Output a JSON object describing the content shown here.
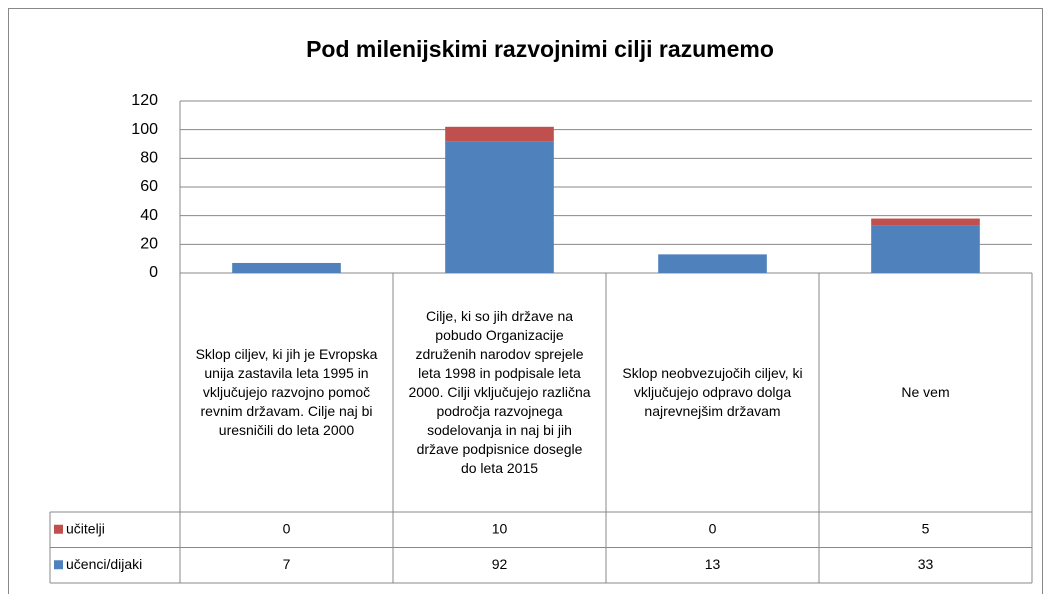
{
  "chart_data": {
    "type": "stacked_bar",
    "title": "Pod milenijskimi razvojnimi cilji razumemo",
    "categories": [
      "Sklop ciljev, ki jih je Evropska unija zastavila leta 1995 in vključujejo razvojno pomoč revnim državam. Cilje naj bi uresničili do leta 2000",
      "Cilje, ki so jih države na pobudo Organizacije združenih narodov sprejele leta 1998 in podpisale leta 2000. Cilji vključujejo različna področja razvojnega sodelovanja in naj bi jih države podpisnice dosegle do leta 2015",
      "Sklop neobvezujočih ciljev, ki vključujejo odpravo dolga najrevnejšim državam",
      "Ne vem"
    ],
    "series": [
      {
        "name": "učitelji",
        "color": "#c0504d",
        "values": [
          0,
          10,
          0,
          5
        ]
      },
      {
        "name": "učenci/dijaki",
        "color": "#4f81bd",
        "values": [
          7,
          92,
          13,
          33
        ]
      }
    ],
    "ylim": [
      0,
      120
    ],
    "yticks": [
      0,
      20,
      40,
      60,
      80,
      100,
      120
    ],
    "grid": true
  }
}
